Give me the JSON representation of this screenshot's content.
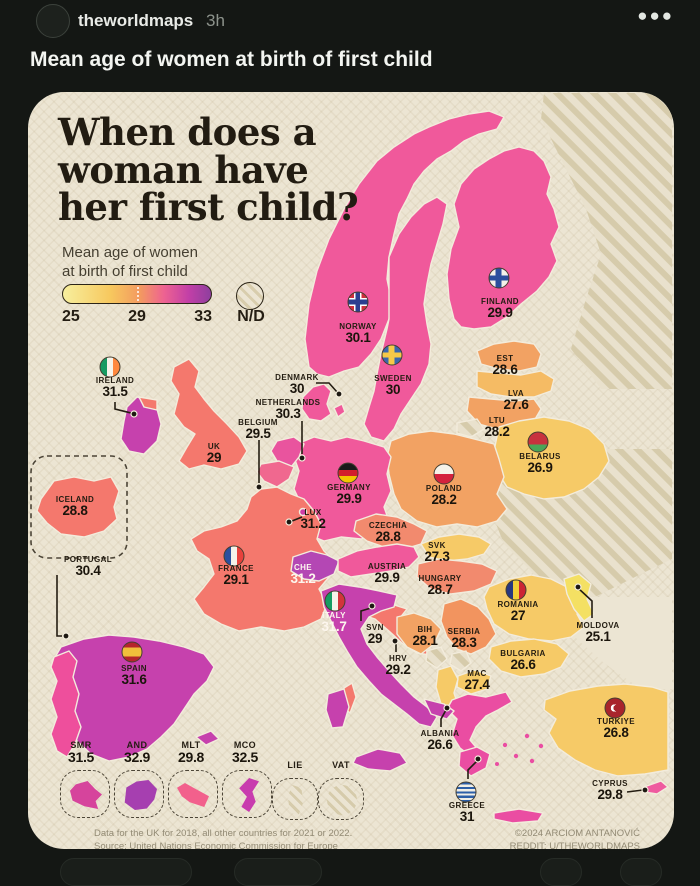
{
  "post": {
    "username": "theworldmaps",
    "time": "3h",
    "title": "Mean age of women at birth of first child"
  },
  "infographic": {
    "title_line1": "When does a",
    "title_line2": "woman have",
    "title_line3": "her first child?",
    "legend": {
      "subtitle_line1": "Mean age of women",
      "subtitle_line2": "at birth of first child",
      "tick_min": "25",
      "tick_mid": "29",
      "tick_max": "33",
      "nd_label": "N/D",
      "gradient_colors": [
        "#f7ef9e",
        "#f7c85e",
        "#f39a60",
        "#ee6391",
        "#c23fa7",
        "#8e3f9e"
      ]
    },
    "footnote_line1": "Data for the UK for 2018, all other countries for 2021 or 2022.",
    "footnote_line2": "Source: United Nations Economic Commission for Europe",
    "credit_line1": "©2024 ARCIOM ANTANOVIĆ",
    "credit_line2": "REDDIT: U/THEWORLDMAPS"
  },
  "countries": [
    {
      "id": "norway",
      "label": "NORWAY",
      "value": "30.1"
    },
    {
      "id": "sweden",
      "label": "SWEDEN",
      "value": "30"
    },
    {
      "id": "finland",
      "label": "FINLAND",
      "value": "29.9"
    },
    {
      "id": "estonia",
      "label": "EST",
      "value": "28.6"
    },
    {
      "id": "latvia",
      "label": "LVA",
      "value": "27.6"
    },
    {
      "id": "lithuania",
      "label": "LTU",
      "value": "28.2"
    },
    {
      "id": "belarus",
      "label": "BELARUS",
      "value": "26.9"
    },
    {
      "id": "denmark",
      "label": "DENMARK",
      "value": "30"
    },
    {
      "id": "netherlands",
      "label": "NETHERLANDS",
      "value": "30.3"
    },
    {
      "id": "belgium",
      "label": "BELGIUM",
      "value": "29.5"
    },
    {
      "id": "luxembourg",
      "label": "LUX",
      "value": "31.2"
    },
    {
      "id": "germany",
      "label": "GERMANY",
      "value": "29.9"
    },
    {
      "id": "poland",
      "label": "POLAND",
      "value": "28.2"
    },
    {
      "id": "ireland",
      "label": "IRELAND",
      "value": "31.5"
    },
    {
      "id": "uk",
      "label": "UK",
      "value": "29"
    },
    {
      "id": "iceland",
      "label": "ICELAND",
      "value": "28.8"
    },
    {
      "id": "france",
      "label": "FRANCE",
      "value": "29.1"
    },
    {
      "id": "switzerland",
      "label": "CHE",
      "value": "31.2"
    },
    {
      "id": "czechia",
      "label": "CZECHIA",
      "value": "28.8"
    },
    {
      "id": "slovakia",
      "label": "SVK",
      "value": "27.3"
    },
    {
      "id": "austria",
      "label": "AUSTRIA",
      "value": "29.9"
    },
    {
      "id": "hungary",
      "label": "HUNGARY",
      "value": "28.7"
    },
    {
      "id": "portugal",
      "label": "PORTUGAL",
      "value": "30.4"
    },
    {
      "id": "spain",
      "label": "SPAIN",
      "value": "31.6"
    },
    {
      "id": "italy",
      "label": "ITALY",
      "value": "31.7"
    },
    {
      "id": "slovenia",
      "label": "SVN",
      "value": "29"
    },
    {
      "id": "croatia",
      "label": "HRV",
      "value": "29.2"
    },
    {
      "id": "bih",
      "label": "BIH",
      "value": "28.1"
    },
    {
      "id": "serbia",
      "label": "SERBIA",
      "value": "28.3"
    },
    {
      "id": "romania",
      "label": "ROMANIA",
      "value": "27"
    },
    {
      "id": "moldova",
      "label": "MOLDOVA",
      "value": "25.1"
    },
    {
      "id": "bulgaria",
      "label": "BULGARIA",
      "value": "26.6"
    },
    {
      "id": "macedonia",
      "label": "MAC",
      "value": "27.4"
    },
    {
      "id": "albania",
      "label": "ALBANIA",
      "value": "26.6"
    },
    {
      "id": "turkiye",
      "label": "TURKIYE",
      "value": "26.8"
    },
    {
      "id": "cyprus",
      "label": "CYPRUS",
      "value": "29.8"
    },
    {
      "id": "greece",
      "label": "GREECE",
      "value": "31"
    }
  ],
  "microstates": [
    {
      "id": "smr",
      "label": "SMR",
      "value": "31.5"
    },
    {
      "id": "and",
      "label": "AND",
      "value": "32.9"
    },
    {
      "id": "mlt",
      "label": "MLT",
      "value": "29.8"
    },
    {
      "id": "mco",
      "label": "MCO",
      "value": "32.5"
    },
    {
      "id": "lie",
      "label": "LIE",
      "value": ""
    },
    {
      "id": "vat",
      "label": "VAT",
      "value": ""
    }
  ],
  "colors": {
    "background_dark": "#141714",
    "card_background": "#ece5d3",
    "pink": "#f0599b",
    "salmon": "#f4786d",
    "orange": "#f2a263",
    "gold": "#f6ca67",
    "yellow": "#f4e063",
    "magenta": "#c641ad",
    "hatch_stripe": "#d6cbab",
    "label_dark": "#241d12"
  }
}
